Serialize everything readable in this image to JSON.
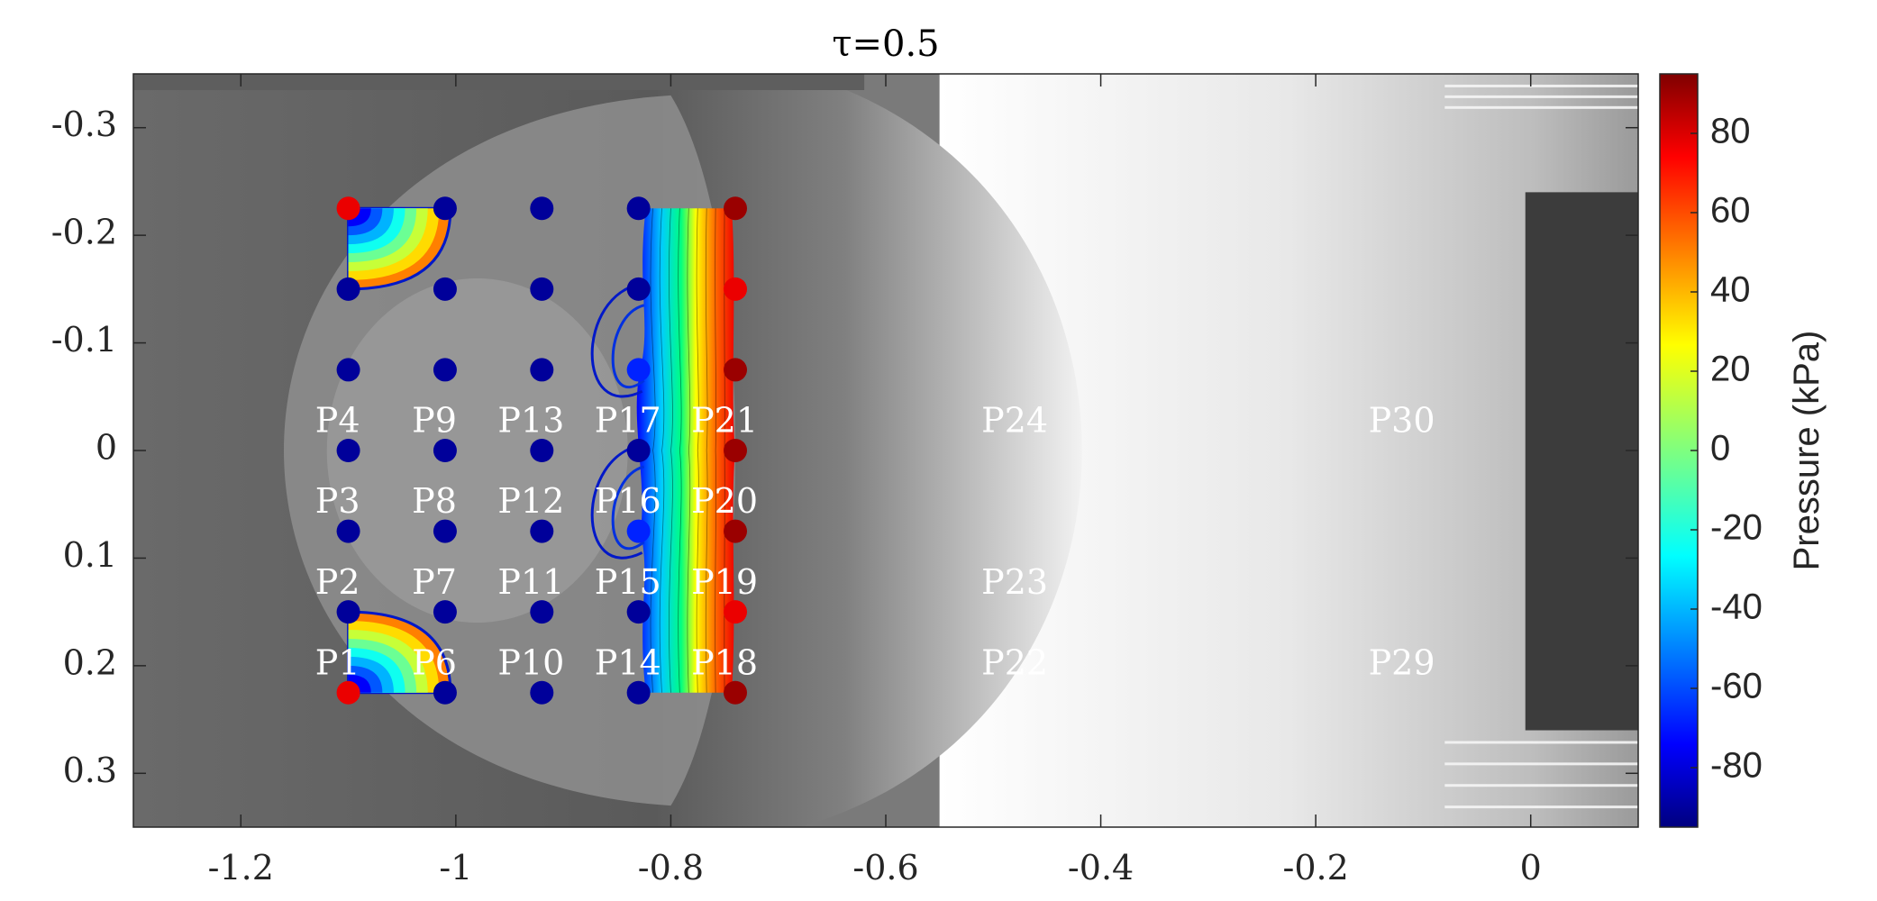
{
  "chart_data": {
    "type": "scatter",
    "title": "τ=0.5",
    "x": {
      "range": [
        -1.3,
        0.1
      ],
      "ticks": [
        -1.2,
        -1,
        -0.8,
        -0.6,
        -0.4,
        -0.2,
        0
      ],
      "tick_labels": [
        "-1.2",
        "-1",
        "-0.8",
        "-0.6",
        "-0.4",
        "-0.2",
        "0"
      ]
    },
    "y": {
      "range": [
        -0.35,
        0.35
      ],
      "reversed": true,
      "ticks": [
        -0.3,
        -0.2,
        -0.1,
        0,
        0.1,
        0.2,
        0.3
      ],
      "tick_labels": [
        "-0.3",
        "-0.2",
        "-0.1",
        "0",
        "0.1",
        "0.2",
        "0.3"
      ]
    },
    "colorbar": {
      "label": "Pressure (kPa)",
      "range": [
        -95,
        95
      ],
      "ticks": [
        80,
        60,
        40,
        20,
        0,
        -20,
        -40,
        -60,
        -80
      ],
      "tick_labels": [
        "80",
        "60",
        "40",
        "20",
        "0",
        "-20",
        "-40",
        "-60",
        "-80"
      ],
      "colormap": "jet"
    },
    "grid": false,
    "sensor_columns_x": [
      -1.1,
      -1.01,
      -0.92,
      -0.83,
      -0.74
    ],
    "sensor_rows_y": [
      -0.225,
      -0.15,
      -0.075,
      0,
      0.075,
      0.15,
      0.225
    ],
    "sensor_pressures_kpa": [
      [
        75,
        -90,
        -90,
        -90,
        -90,
        -90,
        75
      ],
      [
        -90,
        -90,
        -90,
        -90,
        -90,
        -90,
        -90
      ],
      [
        -90,
        -90,
        -90,
        -90,
        -90,
        -90,
        -90
      ],
      [
        -90,
        -90,
        -65,
        -90,
        -65,
        -90,
        -90
      ],
      [
        90,
        75,
        90,
        90,
        90,
        75,
        90
      ]
    ],
    "sensor_labels": [
      {
        "text": "P4",
        "x": -1.11,
        "y": -0.025
      },
      {
        "text": "P9",
        "x": -1.02,
        "y": -0.025
      },
      {
        "text": "P13",
        "x": -0.93,
        "y": -0.025
      },
      {
        "text": "P17",
        "x": -0.84,
        "y": -0.025
      },
      {
        "text": "P21",
        "x": -0.75,
        "y": -0.025
      },
      {
        "text": "P24",
        "x": -0.48,
        "y": -0.025
      },
      {
        "text": "P30",
        "x": -0.12,
        "y": -0.025
      },
      {
        "text": "P3",
        "x": -1.11,
        "y": 0.05
      },
      {
        "text": "P8",
        "x": -1.02,
        "y": 0.05
      },
      {
        "text": "P12",
        "x": -0.93,
        "y": 0.05
      },
      {
        "text": "P16",
        "x": -0.84,
        "y": 0.05
      },
      {
        "text": "P20",
        "x": -0.75,
        "y": 0.05
      },
      {
        "text": "P2",
        "x": -1.11,
        "y": 0.125
      },
      {
        "text": "P7",
        "x": -1.02,
        "y": 0.125
      },
      {
        "text": "P11",
        "x": -0.93,
        "y": 0.125
      },
      {
        "text": "P15",
        "x": -0.84,
        "y": 0.125
      },
      {
        "text": "P19",
        "x": -0.75,
        "y": 0.125
      },
      {
        "text": "P23",
        "x": -0.48,
        "y": 0.125
      },
      {
        "text": "P1",
        "x": -1.11,
        "y": 0.2
      },
      {
        "text": "P6",
        "x": -1.02,
        "y": 0.2
      },
      {
        "text": "P10",
        "x": -0.93,
        "y": 0.2
      },
      {
        "text": "P14",
        "x": -0.84,
        "y": 0.2
      },
      {
        "text": "P18",
        "x": -0.75,
        "y": 0.2
      },
      {
        "text": "P22",
        "x": -0.48,
        "y": 0.2
      },
      {
        "text": "P29",
        "x": -0.12,
        "y": 0.2
      }
    ]
  }
}
